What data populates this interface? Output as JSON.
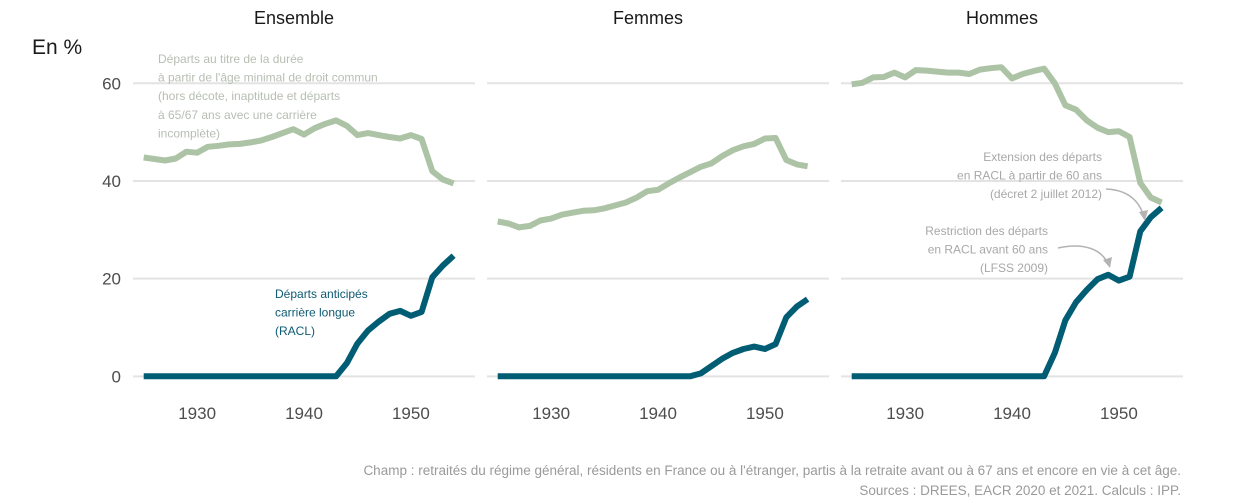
{
  "chart_data": {
    "type": "line",
    "y_unit_label": "En %",
    "ylim": [
      -3,
      66
    ],
    "xlim": [
      1924,
      1956
    ],
    "y_ticks": [
      0,
      20,
      40,
      60
    ],
    "x_ticks": [
      1930,
      1940,
      1950
    ],
    "grid": true,
    "panels": [
      {
        "title": "Ensemble",
        "series": [
          {
            "key": "duree",
            "color": "#adc3a5",
            "x": [
              1925,
              1926,
              1927,
              1928,
              1929,
              1930,
              1931,
              1932,
              1933,
              1934,
              1935,
              1936,
              1937,
              1938,
              1939,
              1940,
              1941,
              1942,
              1943,
              1944,
              1945,
              1946,
              1947,
              1948,
              1949,
              1950,
              1951,
              1952,
              1953,
              1954
            ],
            "y": [
              44.8,
              44.5,
              44.2,
              44.6,
              46.0,
              45.8,
              47.0,
              47.2,
              47.5,
              47.6,
              47.9,
              48.3,
              49.0,
              49.8,
              50.6,
              49.5,
              50.8,
              51.7,
              52.4,
              51.3,
              49.4,
              49.8,
              49.4,
              49.0,
              48.7,
              49.4,
              48.6,
              42.0,
              40.3,
              39.5
            ]
          },
          {
            "key": "racl",
            "color": "#005d73",
            "x": [
              1925,
              1926,
              1927,
              1928,
              1929,
              1930,
              1931,
              1932,
              1933,
              1934,
              1935,
              1936,
              1937,
              1938,
              1939,
              1940,
              1941,
              1942,
              1943,
              1944,
              1945,
              1946,
              1947,
              1948,
              1949,
              1950,
              1951,
              1952,
              1953,
              1954
            ],
            "y": [
              0,
              0,
              0,
              0,
              0,
              0,
              0,
              0,
              0,
              0,
              0,
              0,
              0,
              0,
              0,
              0,
              0,
              0,
              0,
              2.7,
              6.7,
              9.4,
              11.2,
              12.8,
              13.4,
              12.4,
              13.2,
              20.3,
              22.7,
              24.7
            ]
          }
        ]
      },
      {
        "title": "Femmes",
        "series": [
          {
            "key": "duree",
            "color": "#adc3a5",
            "x": [
              1925,
              1926,
              1927,
              1928,
              1929,
              1930,
              1931,
              1932,
              1933,
              1934,
              1935,
              1936,
              1937,
              1938,
              1939,
              1940,
              1941,
              1942,
              1943,
              1944,
              1945,
              1946,
              1947,
              1948,
              1949,
              1950,
              1951,
              1952,
              1953,
              1954
            ],
            "y": [
              31.7,
              31.3,
              30.5,
              30.8,
              31.9,
              32.3,
              33.1,
              33.5,
              33.9,
              34.0,
              34.4,
              35.0,
              35.6,
              36.6,
              37.9,
              38.2,
              39.5,
              40.7,
              41.8,
              42.9,
              43.6,
              45.1,
              46.3,
              47.1,
              47.6,
              48.7,
              48.8,
              44.3,
              43.4,
              43.0
            ]
          },
          {
            "key": "racl",
            "color": "#005d73",
            "x": [
              1925,
              1926,
              1927,
              1928,
              1929,
              1930,
              1931,
              1932,
              1933,
              1934,
              1935,
              1936,
              1937,
              1938,
              1939,
              1940,
              1941,
              1942,
              1943,
              1944,
              1945,
              1946,
              1947,
              1948,
              1949,
              1950,
              1951,
              1952,
              1953,
              1954
            ],
            "y": [
              0,
              0,
              0,
              0,
              0,
              0,
              0,
              0,
              0,
              0,
              0,
              0,
              0,
              0,
              0,
              0,
              0,
              0,
              0,
              0.6,
              2.1,
              3.6,
              4.8,
              5.6,
              6.1,
              5.6,
              6.6,
              12.1,
              14.3,
              15.8
            ]
          }
        ]
      },
      {
        "title": "Hommes",
        "series": [
          {
            "key": "duree",
            "color": "#adc3a5",
            "x": [
              1925,
              1926,
              1927,
              1928,
              1929,
              1930,
              1931,
              1932,
              1933,
              1934,
              1935,
              1936,
              1937,
              1938,
              1939,
              1940,
              1941,
              1942,
              1943,
              1944,
              1945,
              1946,
              1947,
              1948,
              1949,
              1950,
              1951,
              1952,
              1953,
              1954
            ],
            "y": [
              59.8,
              60.1,
              61.2,
              61.3,
              62.2,
              61.2,
              62.7,
              62.6,
              62.4,
              62.2,
              62.2,
              61.9,
              62.8,
              63.1,
              63.3,
              61.0,
              61.9,
              62.5,
              63.0,
              60.0,
              55.5,
              54.6,
              52.4,
              50.9,
              50.0,
              50.2,
              49.0,
              39.6,
              36.6,
              35.6
            ]
          },
          {
            "key": "racl",
            "color": "#005d73",
            "x": [
              1925,
              1926,
              1927,
              1928,
              1929,
              1930,
              1931,
              1932,
              1933,
              1934,
              1935,
              1936,
              1937,
              1938,
              1939,
              1940,
              1941,
              1942,
              1943,
              1944,
              1945,
              1946,
              1947,
              1948,
              1949,
              1950,
              1951,
              1952,
              1953,
              1954
            ],
            "y": [
              0,
              0,
              0,
              0,
              0,
              0,
              0,
              0,
              0,
              0,
              0,
              0,
              0,
              0,
              0,
              0,
              0,
              0,
              0,
              4.8,
              11.5,
              15.2,
              17.7,
              19.9,
              20.8,
              19.6,
              20.4,
              29.7,
              32.6,
              34.5
            ]
          }
        ]
      }
    ],
    "annotations": {
      "duree": [
        "Départs au titre de la durée",
        "à partir de l'âge minimal de droit commun",
        "(hors décote, inaptitude et départs",
        "à 65/67 ans avec une carrière",
        "incomplète)"
      ],
      "racl": [
        "Départs anticipés",
        "carrière longue",
        "(RACL)"
      ],
      "extension": [
        "Extension des départs",
        "en RACL à partir de 60 ans",
        "(décret 2 juillet 2012)"
      ],
      "restriction": [
        "Restriction des départs",
        "en RACL avant 60 ans",
        "(LFSS 2009)"
      ]
    },
    "notes": {
      "champ": "Champ : retraités du régime général, résidents en France ou à l'étranger, partis à la retraite avant ou à 67 ans et encore en vie à cet âge.",
      "sources": "Sources : DREES, EACR 2020 et 2021. Calculs : IPP."
    }
  }
}
